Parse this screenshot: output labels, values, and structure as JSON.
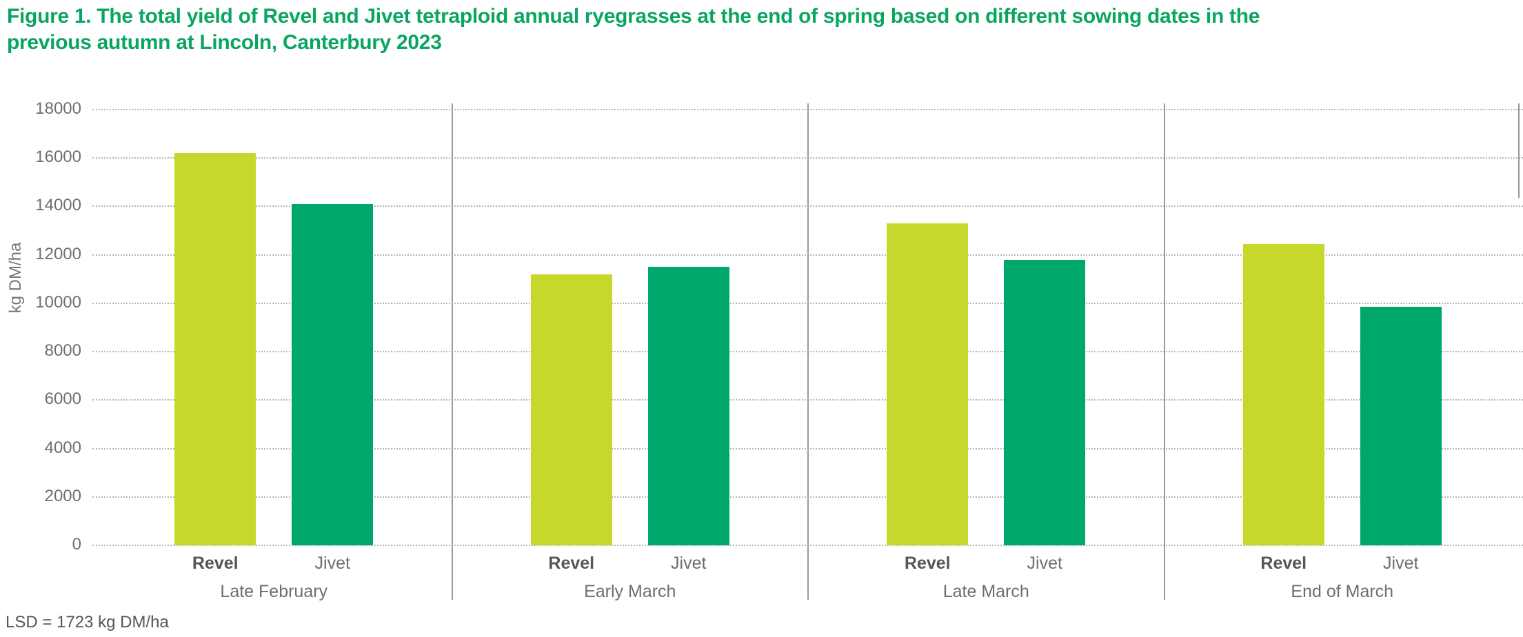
{
  "title": "Figure 1. The total yield of Revel and Jivet tetraploid annual ryegrasses at the end of spring based on different sowing dates in the previous autumn at Lincoln, Canterbury 2023",
  "footnote": "LSD = 1723 kg DM/ha",
  "colors": {
    "revel": "#c7d82d",
    "jivet": "#00a76a",
    "title_green": "#0ba562",
    "axis_text": "#6d6e71",
    "bold_label_text": "#54565a",
    "gridline": "#b4b6b8",
    "separator": "#97999b"
  },
  "chart_data": {
    "type": "bar",
    "title": "Figure 1. The total yield of Revel and Jivet tetraploid annual ryegrasses at the end of spring based on different sowing dates in the previous autumn at Lincoln, Canterbury 2023",
    "categories": [
      "Late February",
      "Early March",
      "Late March",
      "End of March"
    ],
    "series": [
      {
        "name": "Revel",
        "values": [
          16200,
          11200,
          13300,
          12450
        ]
      },
      {
        "name": "Jivet",
        "values": [
          14100,
          11500,
          11800,
          9850
        ]
      }
    ],
    "xlabel": "",
    "ylabel": "kg DM/ha",
    "ylim": [
      0,
      18000
    ],
    "yticks": [
      0,
      2000,
      4000,
      6000,
      8000,
      10000,
      12000,
      14000,
      16000,
      18000
    ],
    "grid": "horizontal dotted",
    "group_separators": true,
    "legend_position": "none",
    "annotation": "LSD = 1723 kg DM/ha"
  }
}
